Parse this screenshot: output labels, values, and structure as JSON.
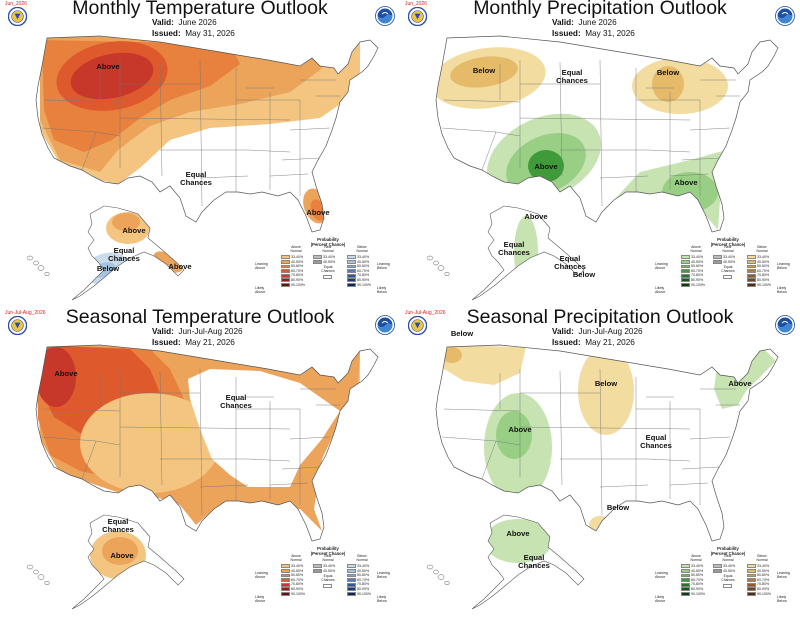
{
  "panels": [
    {
      "corner": "Jun_2026",
      "title": "Monthly Temperature Outlook",
      "valid_label": "Valid:",
      "valid_value": "June 2026",
      "issued_label": "Issued:",
      "issued_value": "May 31, 2026",
      "labels": [
        "Above",
        "Equal\nChances",
        "Above",
        "Above",
        "Equal\nChances",
        "Below",
        "Above"
      ],
      "legend_variant": "temperature"
    },
    {
      "corner": "Jun_2026",
      "title": "Monthly Precipitation Outlook",
      "valid_label": "Valid:",
      "valid_value": "June 2026",
      "issued_label": "Issued:",
      "issued_value": "May 31, 2026",
      "labels": [
        "Below",
        "Equal\nChances",
        "Below",
        "Above",
        "Above",
        "Above",
        "Equal\nChances",
        "Equal\nChances",
        "Below"
      ],
      "legend_variant": "precipitation"
    },
    {
      "corner": "Jun-Jul-Aug_2026",
      "title": "Seasonal Temperature Outlook",
      "valid_label": "Valid:",
      "valid_value": "Jun-Jul-Aug 2026",
      "issued_label": "Issued:",
      "issued_value": "May 21, 2026",
      "labels": [
        "Above",
        "Equal\nChances",
        "Equal\nChances",
        "Above"
      ],
      "legend_variant": "temperature"
    },
    {
      "corner": "Jun-Jul-Aug_2026",
      "title": "Seasonal Precipitation Outlook",
      "valid_label": "Valid:",
      "valid_value": "Jun-Jul-Aug 2026",
      "issued_label": "Issued:",
      "issued_value": "May 21, 2026",
      "labels": [
        "Below",
        "Below",
        "Above",
        "Equal\nChances",
        "Above",
        "Below",
        "Above",
        "Equal\nChances"
      ],
      "legend_variant": "precipitation"
    }
  ],
  "legend": {
    "title": "Probability\n(Percent Chance)",
    "near_normal": "Near\nNormal",
    "equal_chances": "Equal\nChances",
    "bins": [
      "33-40%",
      "40-50%",
      "50-60%",
      "60-70%",
      "70-80%",
      "80-90%",
      "90-100%"
    ],
    "near_bins": [
      "33-40%",
      "40-50%"
    ],
    "temperature": {
      "left_head": "Above\nNormal",
      "right_head": "Below\nNormal",
      "left_top": "Leaning\nAbove",
      "left_bottom": "Likely\nAbove",
      "right_top": "Leaning\nBelow",
      "right_bottom": "Likely\nBelow",
      "left_colors": [
        "#f3c581",
        "#eca35a",
        "#e8803e",
        "#de5a2c",
        "#c7372a",
        "#9a1c16",
        "#661010"
      ],
      "right_colors": [
        "#c9dbea",
        "#a6c4e2",
        "#7ba6d5",
        "#4f7fc0",
        "#2f57a0",
        "#1c3a7b",
        "#12225a"
      ]
    },
    "precipitation": {
      "left_head": "Above\nNormal",
      "right_head": "Below\nNormal",
      "left_top": "Leaning\nAbove",
      "left_bottom": "Likely\nAbove",
      "right_top": "Leaning\nBelow",
      "right_bottom": "Likely\nBelow",
      "left_colors": [
        "#c7e3b2",
        "#98cf84",
        "#6dbb5c",
        "#3f9b3a",
        "#22782a",
        "#145a1e",
        "#0b3d12"
      ],
      "right_colors": [
        "#f2dca0",
        "#e5bb6a",
        "#d49a48",
        "#b87a36",
        "#955a28",
        "#744020",
        "#532a14"
      ]
    }
  },
  "colors": {
    "temp_above": [
      "#f3c581",
      "#eca35a",
      "#e8803e",
      "#de5a2c",
      "#c7372a"
    ],
    "temp_below": [
      "#c9dbea",
      "#a6c4e2"
    ],
    "precip_above": [
      "#c7e3b2",
      "#98cf84",
      "#6dbb5c",
      "#3f9b3a"
    ],
    "precip_below": [
      "#f2dca0",
      "#e5bb6a",
      "#d49a48"
    ],
    "near": "#bcbcbc"
  }
}
